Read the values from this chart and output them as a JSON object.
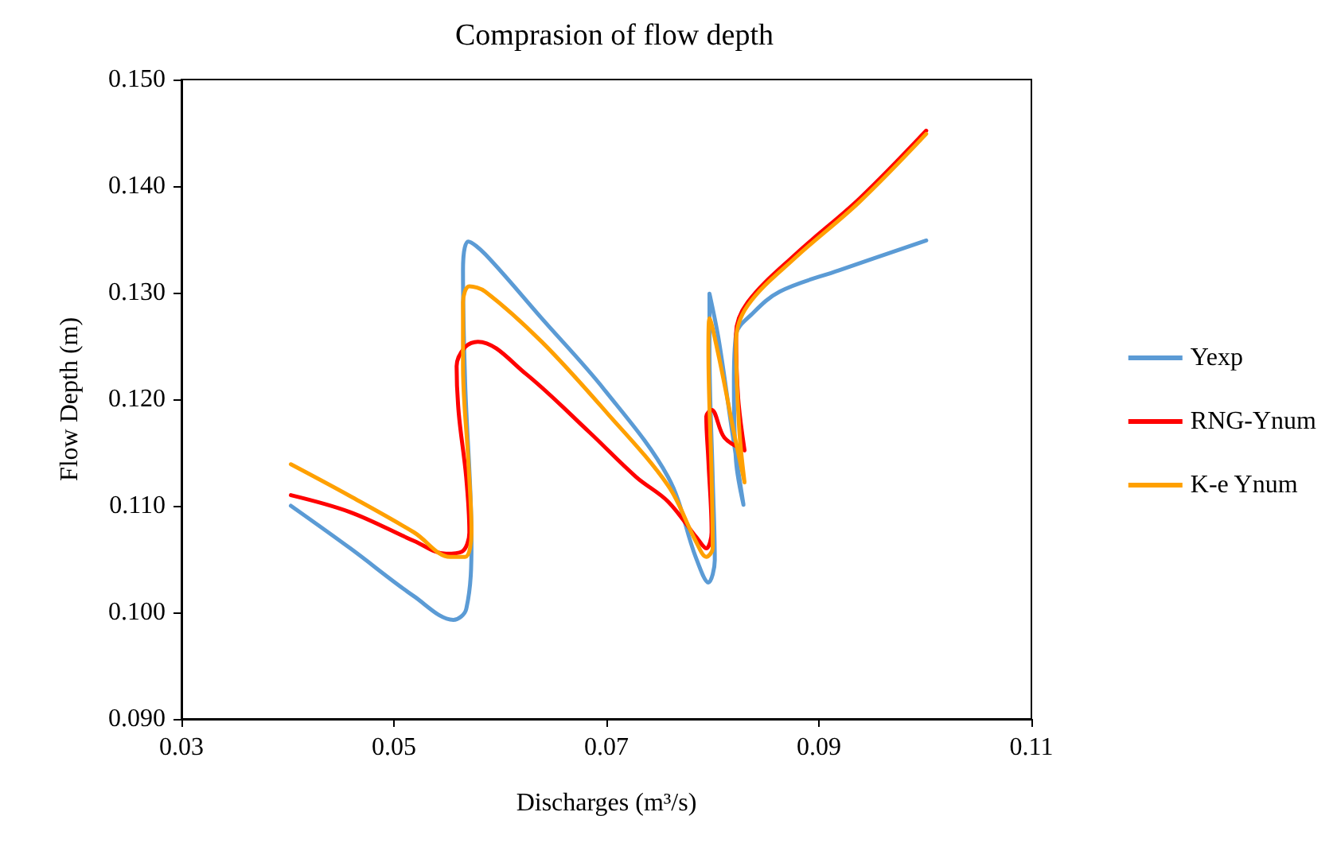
{
  "chart_data": {
    "type": "line",
    "title": "Comprasion of flow depth",
    "xlabel": "Discharges (m³/s)",
    "ylabel": "Flow Depth (m)",
    "xlim": [
      0.03,
      0.11
    ],
    "xticks": [
      0.03,
      0.05,
      0.07,
      0.09,
      0.11
    ],
    "ylim": [
      0.09,
      0.15
    ],
    "yticks": [
      {
        "value": 0.09,
        "label": "0.090"
      },
      {
        "value": 0.1,
        "label": "0.100"
      },
      {
        "value": 0.11,
        "label": "0.110"
      },
      {
        "value": 0.12,
        "label": "0.120"
      },
      {
        "value": 0.13,
        "label": "0.130"
      },
      {
        "value": 0.14,
        "label": "0.140"
      },
      {
        "value": 0.15,
        "label": "0.150"
      }
    ],
    "grid": false,
    "legend": "right",
    "marker": "none",
    "line_style": "solid",
    "series": [
      {
        "name": "Yexp",
        "color": "#5b9bd5",
        "x": [
          0.0403,
          0.0459,
          0.0519,
          0.0556,
          0.0568,
          0.0573,
          0.0567,
          0.0565,
          0.057,
          0.0586,
          0.0639,
          0.0698,
          0.0758,
          0.0784,
          0.0796,
          0.0802,
          0.08,
          0.0797,
          0.0797,
          0.0806,
          0.0818,
          0.0829,
          0.0822,
          0.082,
          0.0822,
          0.0836,
          0.0863,
          0.0919,
          0.1001
        ],
        "values": [
          0.11,
          0.106,
          0.1015,
          0.0993,
          0.1003,
          0.1067,
          0.1216,
          0.1321,
          0.1348,
          0.1336,
          0.1276,
          0.1209,
          0.1127,
          0.1052,
          0.1028,
          0.1049,
          0.1127,
          0.1246,
          0.1299,
          0.1254,
          0.1172,
          0.1101,
          0.1142,
          0.1216,
          0.1261,
          0.1279,
          0.1301,
          0.1321,
          0.1349
        ]
      },
      {
        "name": "RNG-Ynum",
        "color": "#ff0000",
        "x": [
          0.0403,
          0.0459,
          0.0519,
          0.0549,
          0.0564,
          0.0571,
          0.0568,
          0.0561,
          0.0559,
          0.0567,
          0.0579,
          0.0624,
          0.0684,
          0.0728,
          0.0758,
          0.0785,
          0.0794,
          0.0799,
          0.0796,
          0.0794,
          0.0799,
          0.0811,
          0.083,
          0.0824,
          0.0822,
          0.0833,
          0.0878,
          0.0938,
          0.1001
        ],
        "values": [
          0.111,
          0.1094,
          0.1067,
          0.1055,
          0.1057,
          0.1075,
          0.1127,
          0.1187,
          0.1231,
          0.1249,
          0.1254,
          0.1224,
          0.1169,
          0.1127,
          0.1104,
          0.107,
          0.106,
          0.1075,
          0.1142,
          0.1184,
          0.119,
          0.1164,
          0.1152,
          0.1201,
          0.1261,
          0.1291,
          0.1336,
          0.1388,
          0.1452
        ]
      },
      {
        "name": "K-e Ynum",
        "color": "#ffa000",
        "x": [
          0.0403,
          0.0459,
          0.0519,
          0.0553,
          0.0567,
          0.0573,
          0.057,
          0.0565,
          0.0565,
          0.0571,
          0.0586,
          0.0639,
          0.0698,
          0.0758,
          0.0784,
          0.0794,
          0.08,
          0.0799,
          0.0796,
          0.0797,
          0.0806,
          0.0821,
          0.083,
          0.0825,
          0.0822,
          0.0833,
          0.0878,
          0.0938,
          0.1001
        ],
        "values": [
          0.1139,
          0.1109,
          0.1075,
          0.1052,
          0.1052,
          0.1075,
          0.1142,
          0.1231,
          0.1291,
          0.1306,
          0.1301,
          0.1254,
          0.119,
          0.1119,
          0.1067,
          0.1052,
          0.106,
          0.1127,
          0.1246,
          0.1276,
          0.1239,
          0.1164,
          0.1122,
          0.1172,
          0.1254,
          0.1288,
          0.1333,
          0.1385,
          0.1449
        ]
      }
    ]
  }
}
